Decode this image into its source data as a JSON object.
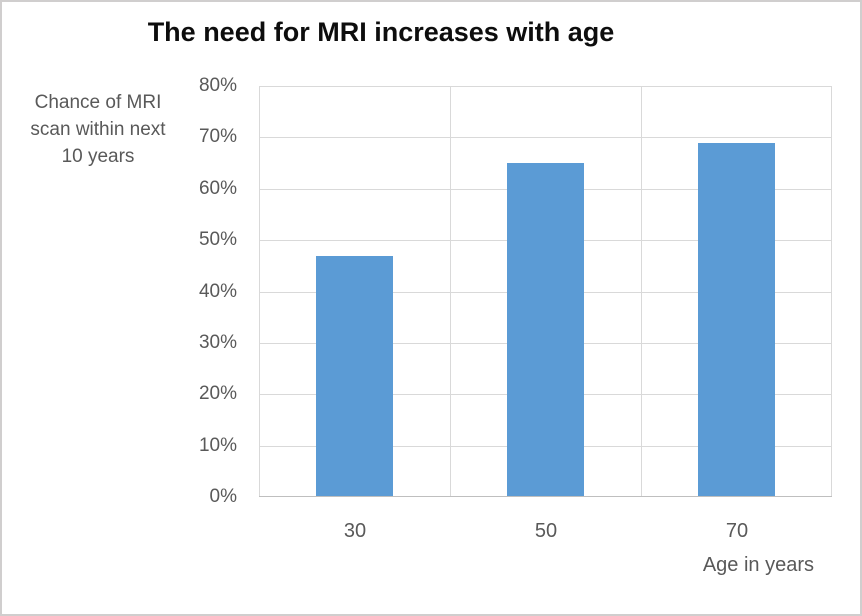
{
  "figure": {
    "background": "#ffffff",
    "border_color": "#d0cece"
  },
  "chart_data": {
    "type": "bar",
    "title": "The need for MRI increases with age",
    "categories": [
      "30",
      "50",
      "70"
    ],
    "values": [
      47,
      65,
      69
    ],
    "ylabel_lines": [
      "Chance of MRI",
      "scan within next",
      "10 years"
    ],
    "xlabel": "Age in years",
    "ylim": [
      0,
      80
    ],
    "ytick_step": 10,
    "ytick_labels": [
      "0%",
      "10%",
      "20%",
      "30%",
      "40%",
      "50%",
      "60%",
      "70%",
      "80%"
    ],
    "grid": true,
    "legend": false,
    "colors": {
      "bar": "#5b9bd5",
      "gridline": "#d9d9d9",
      "axis_line": "#bfbfbf",
      "label_text": "#595959",
      "title_text": "#0d0d0d"
    }
  }
}
